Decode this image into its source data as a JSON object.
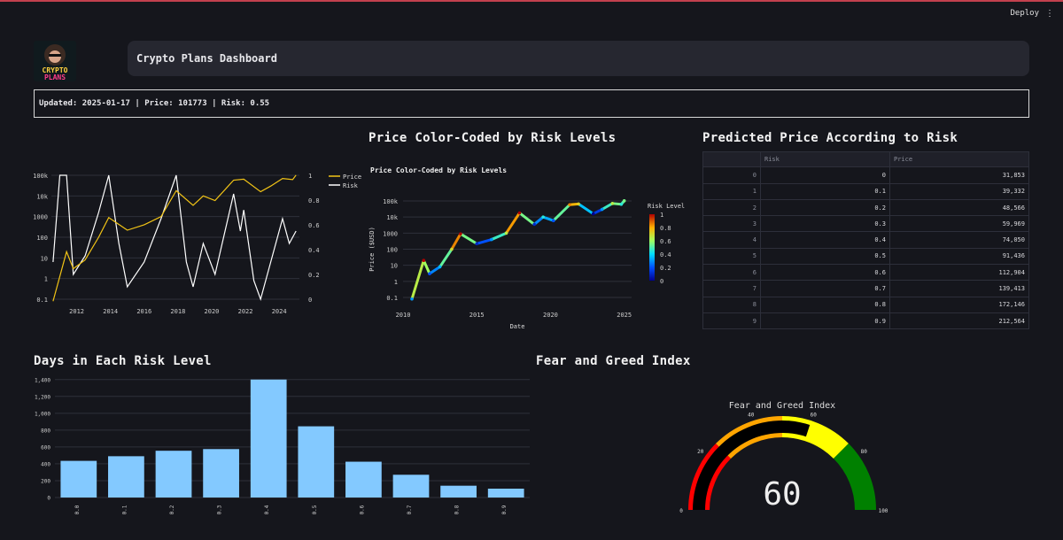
{
  "header": {
    "deploy_label": "Deploy",
    "menu_icon": "kebab-menu-icon"
  },
  "logo": {
    "line1": "CRYPTO",
    "line2": "PLANS"
  },
  "dashboard_title": "Crypto Plans Dashboard",
  "status_line": "Updated: 2025-01-17 | Price: 101773 | Risk: 0.55",
  "sections": {
    "price_risk_color": "Price Color-Coded by Risk Levels",
    "predicted_price": "Predicted Price According to Risk",
    "days_in_risk": "Days in Each Risk Level",
    "fear_greed": "Fear and Greed Index"
  },
  "colors": {
    "price_line": "#f2c416",
    "risk_line": "#ffffff",
    "bar": "#83c9ff",
    "gauge_red": "#ff0000",
    "gauge_orange": "#ffa500",
    "gauge_yellow": "#ffff00",
    "gauge_green": "#008000"
  },
  "chart_data": [
    {
      "type": "line",
      "x_ticks": [
        "2012",
        "2014",
        "2016",
        "2018",
        "2020",
        "2022",
        "2024"
      ],
      "y_left_ticks": [
        "0.1",
        "1",
        "10",
        "100",
        "1000",
        "10k",
        "100k"
      ],
      "y_left_scale": "log",
      "y_right_ticks": [
        "0",
        "0.2",
        "0.4",
        "0.6",
        "0.8",
        "1"
      ],
      "ylim_right": [
        0,
        1
      ],
      "legend": "top-right",
      "series": [
        {
          "name": "Price",
          "x": [
            2010.6,
            2011.4,
            2011.8,
            2012.5,
            2013.3,
            2013.9,
            2015.0,
            2016.0,
            2017.0,
            2017.9,
            2018.9,
            2019.5,
            2020.2,
            2021.3,
            2021.9,
            2022.9,
            2023.5,
            2024.2,
            2024.8,
            2025.0
          ],
          "values": [
            0.08,
            20,
            3,
            8,
            100,
            900,
            220,
            400,
            1000,
            18000,
            3500,
            10000,
            6000,
            58000,
            65000,
            16000,
            30000,
            70000,
            62000,
            101773
          ]
        },
        {
          "name": "Risk",
          "x": [
            2010.6,
            2011.0,
            2011.4,
            2011.8,
            2012.5,
            2013.3,
            2013.9,
            2014.5,
            2015.0,
            2016.0,
            2017.0,
            2017.9,
            2018.5,
            2018.9,
            2019.5,
            2020.2,
            2021.3,
            2021.7,
            2021.9,
            2022.5,
            2022.9,
            2023.5,
            2024.2,
            2024.6,
            2025.0
          ],
          "values": [
            0.3,
            1.0,
            1.0,
            0.2,
            0.35,
            0.7,
            1.0,
            0.45,
            0.1,
            0.3,
            0.65,
            1.0,
            0.3,
            0.1,
            0.45,
            0.2,
            0.85,
            0.55,
            0.72,
            0.15,
            0.0,
            0.3,
            0.65,
            0.45,
            0.55
          ]
        }
      ]
    },
    {
      "type": "scatter",
      "title": "Price Color-Coded by Risk Levels",
      "xlabel": "Date",
      "ylabel": "Price ($USD)",
      "x_ticks": [
        "2010",
        "2015",
        "2020",
        "2025"
      ],
      "y_ticks": [
        "0.1",
        "1",
        "10",
        "100",
        "1000",
        "10k",
        "100k"
      ],
      "y_scale": "log",
      "colorbar": {
        "title": "Risk Level",
        "ticks": [
          "0",
          "0.2",
          "0.4",
          "0.6",
          "0.8",
          "1"
        ]
      },
      "points": {
        "x": [
          2010.6,
          2011.4,
          2011.8,
          2012.5,
          2013.3,
          2013.9,
          2015.0,
          2016.0,
          2017.0,
          2017.9,
          2018.9,
          2019.5,
          2020.2,
          2021.3,
          2021.9,
          2022.9,
          2023.5,
          2024.2,
          2024.8,
          2025.0
        ],
        "price": [
          0.08,
          20,
          3,
          8,
          100,
          900,
          220,
          400,
          1000,
          18000,
          3500,
          10000,
          6000,
          58000,
          65000,
          16000,
          30000,
          70000,
          62000,
          101773
        ],
        "risk": [
          0.3,
          1.0,
          0.2,
          0.35,
          0.7,
          1.0,
          0.1,
          0.3,
          0.65,
          1.0,
          0.1,
          0.45,
          0.2,
          0.85,
          0.72,
          0.0,
          0.3,
          0.65,
          0.45,
          0.55
        ]
      }
    },
    {
      "type": "table",
      "columns": [
        "",
        "Risk",
        "Price"
      ],
      "rows": [
        [
          "0",
          "0",
          "31,853"
        ],
        [
          "1",
          "0.1",
          "39,332"
        ],
        [
          "2",
          "0.2",
          "48,566"
        ],
        [
          "3",
          "0.3",
          "59,969"
        ],
        [
          "4",
          "0.4",
          "74,050"
        ],
        [
          "5",
          "0.5",
          "91,436"
        ],
        [
          "6",
          "0.6",
          "112,904"
        ],
        [
          "7",
          "0.7",
          "139,413"
        ],
        [
          "8",
          "0.8",
          "172,146"
        ],
        [
          "9",
          "0.9",
          "212,564"
        ]
      ]
    },
    {
      "type": "bar",
      "categories": [
        "0.0",
        "0.1",
        "0.2",
        "0.3",
        "0.4",
        "0.5",
        "0.6",
        "0.7",
        "0.8",
        "0.9"
      ],
      "values": [
        435,
        490,
        555,
        575,
        1400,
        845,
        425,
        270,
        140,
        105
      ],
      "y_ticks": [
        "0",
        "200",
        "400",
        "600",
        "800",
        "1,000",
        "1,200",
        "1,400"
      ],
      "ylim": [
        0,
        1450
      ]
    },
    {
      "type": "gauge",
      "title": "Fear and Greed Index",
      "value": 60,
      "range": [
        0,
        100
      ],
      "ticks": [
        "0",
        "20",
        "40",
        "60",
        "80",
        "100"
      ],
      "steps": [
        {
          "range": [
            0,
            25
          ],
          "color": "red"
        },
        {
          "range": [
            25,
            50
          ],
          "color": "orange"
        },
        {
          "range": [
            50,
            75
          ],
          "color": "yellow"
        },
        {
          "range": [
            75,
            100
          ],
          "color": "green"
        }
      ]
    }
  ]
}
